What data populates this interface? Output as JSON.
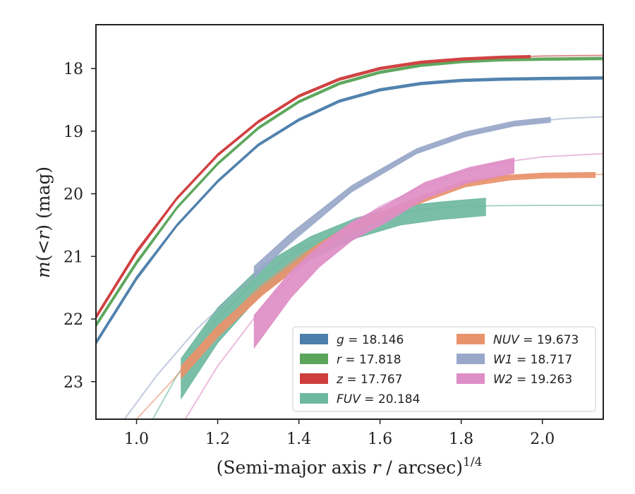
{
  "chart_data": {
    "type": "line",
    "title": "",
    "xlabel": "(Semi-major axis r / arcsec)",
    "xlabel_parts": {
      "pre": "(Semi-major axis ",
      "var": "r",
      "post": " / arcsec)",
      "sup": "1/4"
    },
    "ylabel_parts": {
      "pre": "m(<",
      "var": "r",
      "post": ") (mag)"
    },
    "xlim": [
      0.9,
      2.15
    ],
    "ylim": [
      23.6,
      17.3
    ],
    "y_inverted": true,
    "grid": false,
    "legend_placement": "lower-right",
    "xticks": [
      {
        "v": 1.0,
        "label": "1.0"
      },
      {
        "v": 1.2,
        "label": "1.2"
      },
      {
        "v": 1.4,
        "label": "1.4"
      },
      {
        "v": 1.6,
        "label": "1.6"
      },
      {
        "v": 1.8,
        "label": "1.8"
      },
      {
        "v": 2.0,
        "label": "2.0"
      }
    ],
    "yticks": [
      {
        "v": 18,
        "label": "18"
      },
      {
        "v": 19,
        "label": "19"
      },
      {
        "v": 20,
        "label": "20"
      },
      {
        "v": 21,
        "label": "21"
      },
      {
        "v": 22,
        "label": "22"
      },
      {
        "v": 23,
        "label": "23"
      }
    ],
    "series": [
      {
        "name": "g",
        "legend_var": "g",
        "legend_value": "= 18.146",
        "color": "#4c7fab",
        "model_x": [
          0.9,
          1.0,
          1.1,
          1.2,
          1.3,
          1.4,
          1.5,
          1.6,
          1.7,
          1.8,
          1.9,
          2.0,
          2.15
        ],
        "model_y": [
          22.38,
          21.35,
          20.5,
          19.8,
          19.22,
          18.82,
          18.52,
          18.34,
          18.24,
          18.19,
          18.17,
          18.16,
          18.15
        ],
        "data_x": [
          0.9,
          1.0,
          1.1,
          1.2,
          1.3,
          1.4,
          1.5,
          1.6,
          1.7,
          1.8,
          1.9,
          2.0,
          2.15
        ],
        "data_y": [
          22.38,
          21.35,
          20.5,
          19.8,
          19.22,
          18.82,
          18.52,
          18.34,
          18.24,
          18.19,
          18.17,
          18.16,
          18.15
        ],
        "data_err": [
          0.03,
          0.03,
          0.02,
          0.02,
          0.02,
          0.02,
          0.02,
          0.02,
          0.02,
          0.02,
          0.02,
          0.02,
          0.02
        ]
      },
      {
        "name": "r",
        "legend_var": "r",
        "legend_value": "= 17.818",
        "color": "#5aa55a",
        "model_x": [
          0.9,
          1.0,
          1.1,
          1.2,
          1.3,
          1.4,
          1.5,
          1.6,
          1.7,
          1.8,
          1.9,
          2.0,
          2.15
        ],
        "model_y": [
          22.1,
          21.1,
          20.22,
          19.52,
          18.95,
          18.53,
          18.24,
          18.06,
          17.95,
          17.89,
          17.86,
          17.85,
          17.84
        ],
        "data_x": [
          0.9,
          1.0,
          1.1,
          1.2,
          1.3,
          1.4,
          1.5,
          1.6,
          1.7,
          1.8,
          1.9,
          2.0,
          2.15
        ],
        "data_y": [
          22.1,
          21.1,
          20.22,
          19.52,
          18.95,
          18.53,
          18.24,
          18.06,
          17.95,
          17.89,
          17.86,
          17.85,
          17.84
        ],
        "data_err": [
          0.03,
          0.03,
          0.02,
          0.02,
          0.02,
          0.02,
          0.02,
          0.02,
          0.02,
          0.02,
          0.02,
          0.02,
          0.02
        ]
      },
      {
        "name": "z",
        "legend_var": "z",
        "legend_value": "= 17.767",
        "color": "#cf3d3d",
        "model_x": [
          0.9,
          1.0,
          1.1,
          1.2,
          1.3,
          1.4,
          1.5,
          1.6,
          1.7,
          1.8,
          1.9,
          2.0,
          2.15
        ],
        "model_y": [
          21.97,
          20.93,
          20.07,
          19.38,
          18.85,
          18.44,
          18.17,
          18.0,
          17.9,
          17.85,
          17.82,
          17.8,
          17.79
        ],
        "data_x": [
          0.9,
          1.0,
          1.1,
          1.2,
          1.3,
          1.4,
          1.5,
          1.6,
          1.7,
          1.8,
          1.9,
          1.97
        ],
        "data_y": [
          21.97,
          20.93,
          20.07,
          19.38,
          18.85,
          18.44,
          18.17,
          18.0,
          17.9,
          17.85,
          17.82,
          17.81
        ],
        "data_err": [
          0.03,
          0.03,
          0.02,
          0.02,
          0.02,
          0.02,
          0.02,
          0.02,
          0.02,
          0.02,
          0.02,
          0.02
        ]
      },
      {
        "name": "FUV",
        "legend_var": "FUV",
        "legend_value": "= 20.184",
        "color": "#6fb8a0",
        "model_x": [
          1.04,
          1.1,
          1.2,
          1.3,
          1.4,
          1.5,
          1.6,
          1.7,
          1.8,
          1.9,
          2.0,
          2.15
        ],
        "model_y": [
          23.6,
          22.9,
          21.98,
          21.35,
          20.9,
          20.6,
          20.38,
          20.25,
          20.2,
          20.19,
          20.185,
          20.184
        ],
        "data_x": [
          1.11,
          1.2,
          1.31,
          1.43,
          1.54,
          1.65,
          1.75,
          1.86
        ],
        "data_y": [
          22.95,
          22.1,
          21.36,
          20.86,
          20.55,
          20.35,
          20.27,
          20.21
        ],
        "data_err": [
          0.32,
          0.28,
          0.22,
          0.18,
          0.16,
          0.15,
          0.14,
          0.14
        ]
      },
      {
        "name": "NUV",
        "legend_var": "NUV",
        "legend_value": "= 19.673",
        "color": "#e8936b",
        "model_x": [
          1.0,
          1.1,
          1.2,
          1.3,
          1.4,
          1.5,
          1.6,
          1.7,
          1.8,
          1.9,
          2.0,
          2.15
        ],
        "model_y": [
          23.6,
          22.9,
          22.15,
          21.5,
          21.0,
          20.6,
          20.3,
          20.05,
          19.85,
          19.74,
          19.7,
          19.69
        ],
        "data_x": [
          1.11,
          1.2,
          1.31,
          1.45,
          1.53,
          1.64,
          1.72,
          1.81,
          1.92,
          2.0,
          2.13
        ],
        "data_y": [
          22.85,
          22.2,
          21.55,
          20.85,
          20.55,
          20.25,
          20.05,
          19.84,
          19.74,
          19.71,
          19.7
        ],
        "data_err": [
          0.1,
          0.09,
          0.07,
          0.06,
          0.06,
          0.05,
          0.05,
          0.05,
          0.04,
          0.04,
          0.04
        ]
      },
      {
        "name": "W1",
        "legend_var": "W1",
        "legend_value": "= 18.717",
        "color": "#99a8c9",
        "model_x": [
          0.97,
          1.05,
          1.15,
          1.25,
          1.35,
          1.45,
          1.55,
          1.65,
          1.75,
          1.85,
          1.95,
          2.05,
          2.15
        ],
        "model_y": [
          23.6,
          22.9,
          22.15,
          21.55,
          20.95,
          20.4,
          19.85,
          19.45,
          19.18,
          19.0,
          18.87,
          18.8,
          18.77
        ],
        "data_x": [
          1.29,
          1.38,
          1.53,
          1.69,
          1.81,
          1.93,
          2.02
        ],
        "data_y": [
          21.25,
          20.7,
          19.92,
          19.32,
          19.05,
          18.88,
          18.82
        ],
        "data_err": [
          0.09,
          0.07,
          0.05,
          0.04,
          0.04,
          0.04,
          0.04
        ]
      },
      {
        "name": "W2",
        "legend_var": "W2",
        "legend_value": "= 19.263",
        "color": "#de8ec6",
        "model_x": [
          1.12,
          1.2,
          1.3,
          1.4,
          1.5,
          1.6,
          1.7,
          1.8,
          1.9,
          2.0,
          2.15
        ],
        "model_y": [
          23.6,
          22.75,
          21.9,
          21.2,
          20.65,
          20.2,
          19.9,
          19.66,
          19.5,
          19.41,
          19.36
        ],
        "data_x": [
          1.29,
          1.38,
          1.45,
          1.53,
          1.62,
          1.71,
          1.82,
          1.93
        ],
        "data_y": [
          22.2,
          21.45,
          21.0,
          20.6,
          20.3,
          19.95,
          19.7,
          19.55
        ],
        "data_err": [
          0.26,
          0.21,
          0.17,
          0.15,
          0.14,
          0.13,
          0.12,
          0.12
        ]
      }
    ]
  }
}
